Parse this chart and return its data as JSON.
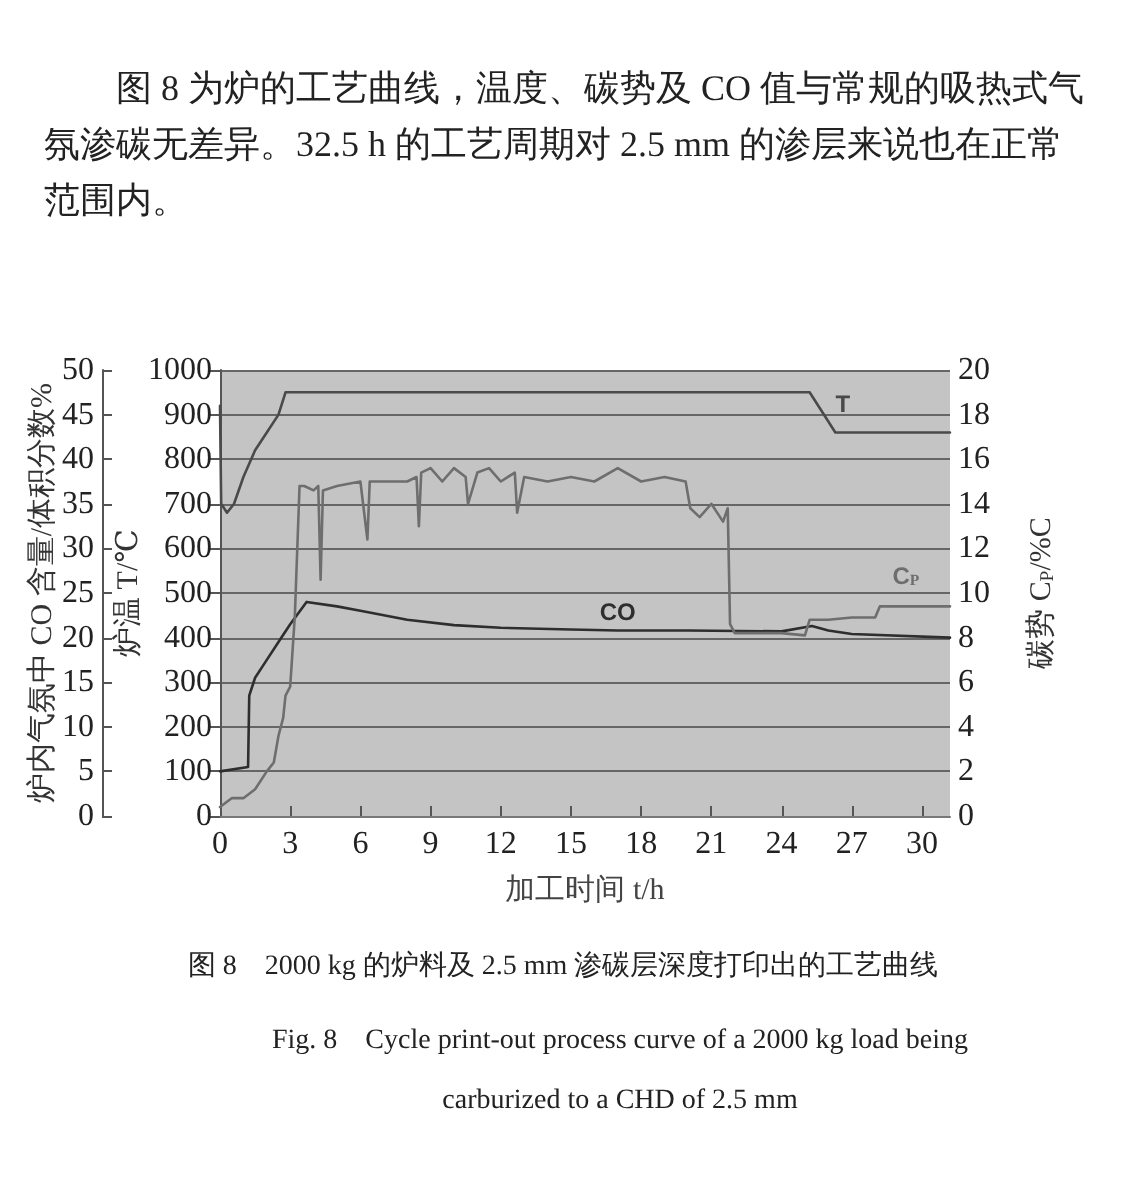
{
  "chart_data": {
    "type": "line",
    "annotations": [
      "图 8 为炉的工艺曲线，温度、碳势及 CO 值与常规的吸热式气氛渗碳无差异。32.5 h 的工艺周期对 2.5 mm 的渗层来说也在正常范围内。",
      "图 8　2000 kg 的炉料及 2.5 mm 渗碳层深度打印出的工艺曲线",
      "Fig. 8　Cycle print-out process curve of a 2000 kg load being carburized to a CHD of 2.5 mm"
    ],
    "xlabel": "加工时间 t/h",
    "ylabel": "炉温 T/℃",
    "y2label": "碳势 C$_{P}$/%C",
    "y3label": "炉内气氛中 CO 含量/体积分数%",
    "xlim": [
      0,
      31.2
    ],
    "xticks": [
      0,
      3,
      6,
      9,
      12,
      15,
      18,
      21,
      24,
      27,
      30
    ],
    "ylim": [
      0,
      1000
    ],
    "yticks": [
      0,
      100,
      200,
      300,
      400,
      500,
      600,
      700,
      800,
      900,
      1000
    ],
    "y2lim": [
      0,
      20
    ],
    "y2ticks": [
      0,
      2,
      4,
      6,
      8,
      10,
      12,
      14,
      16,
      18,
      20
    ],
    "y3lim": [
      0,
      50
    ],
    "y3ticks": [
      0,
      5,
      10,
      15,
      20,
      25,
      30,
      35,
      40,
      45,
      50
    ],
    "grid": "y",
    "marker": "none",
    "line_style": "solid",
    "series": [
      {
        "name": "T",
        "color": "#4a4a4a",
        "x": [
          0,
          0.05,
          0.3,
          0.6,
          1.0,
          1.5,
          2.0,
          2.5,
          2.8,
          25.2,
          26.3,
          31.2
        ],
        "values": [
          920,
          700,
          680,
          700,
          760,
          820,
          860,
          900,
          950,
          950,
          860,
          860
        ]
      },
      {
        "name": "CO",
        "color": "#2e2e2e",
        "axis": "y3",
        "x": [
          0,
          1.2,
          1.25,
          1.5,
          2,
          2.5,
          3,
          3.7,
          5,
          6,
          8,
          10,
          12,
          15,
          17,
          20,
          24,
          25.3,
          26,
          27,
          31.2
        ],
        "values": [
          5,
          5.5,
          13.5,
          15.5,
          17.5,
          19.5,
          21.5,
          24,
          23.5,
          23,
          22,
          21.4,
          21.1,
          20.9,
          20.8,
          20.8,
          20.7,
          21.3,
          20.8,
          20.4,
          20
        ]
      },
      {
        "name": "C$_{P}$",
        "color": "#6e6e6e",
        "axis": "y2",
        "x": [
          0,
          0.5,
          1,
          1.5,
          2,
          2.3,
          2.5,
          2.7,
          2.8,
          2.9,
          3.0,
          3.2,
          3.4,
          3.6,
          4.0,
          4.2,
          4.3,
          4.4,
          5.0,
          6.0,
          6.3,
          6.4,
          7,
          8,
          8.4,
          8.5,
          8.6,
          9,
          9.5,
          10,
          10.5,
          10.6,
          11,
          11.5,
          12,
          12.6,
          12.7,
          13,
          14,
          15,
          16,
          17,
          18,
          19,
          19.9,
          20.1,
          20.5,
          21,
          21.5,
          21.7,
          21.8,
          22,
          23,
          24,
          25,
          25.2,
          26,
          27,
          28,
          28.2,
          29,
          30,
          31.2
        ],
        "values": [
          0.4,
          0.8,
          0.8,
          1.2,
          2.0,
          2.4,
          3.6,
          4.4,
          5.4,
          5.6,
          5.8,
          9.0,
          14.8,
          14.8,
          14.6,
          14.8,
          10.6,
          14.6,
          14.8,
          15.0,
          12.4,
          15.0,
          15.0,
          15.0,
          15.2,
          13.0,
          15.4,
          15.6,
          15.0,
          15.6,
          15.2,
          14.0,
          15.4,
          15.6,
          15.0,
          15.4,
          13.6,
          15.2,
          15.0,
          15.2,
          15.0,
          15.6,
          15.0,
          15.2,
          15.0,
          13.8,
          13.4,
          14.0,
          13.2,
          13.8,
          8.6,
          8.2,
          8.2,
          8.2,
          8.1,
          8.8,
          8.8,
          8.9,
          8.9,
          9.4,
          9.4,
          9.4,
          9.4
        ]
      }
    ]
  }
}
